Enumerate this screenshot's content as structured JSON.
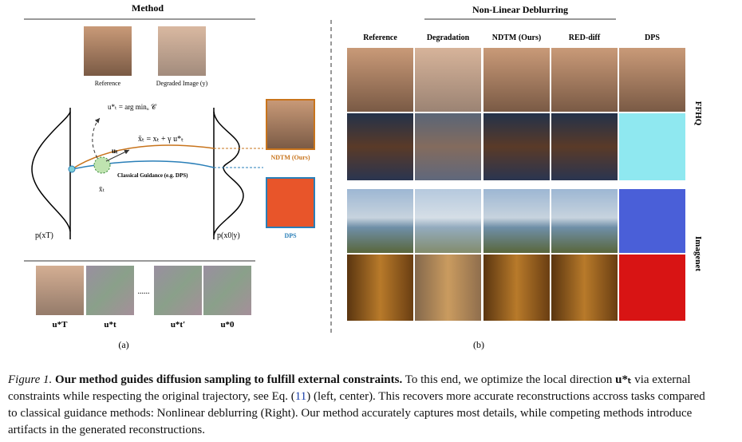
{
  "left": {
    "title": "Method",
    "reference_label": "Reference",
    "degraded_label": "Degraded Image (y)",
    "argmin_eq": "u*ₜ = arg minᵤ 𝒞",
    "update_eq": "x̄ₜ = xₜ + γ u*ₜ",
    "direction_label": "uₜ",
    "guidance_label": "Classical Guidance (e.g. DPS)",
    "point_label": "x̄ₜ",
    "prior_label": "p(xT)",
    "posterior_label": "p(x0|y)",
    "ours_label": "NDTM (Ours)",
    "dps_label": "DPS",
    "dots": "......",
    "u_labels": [
      "u*T",
      "u*t",
      "u*t′",
      "u*0"
    ],
    "panel_label": "(a)"
  },
  "right": {
    "title": "Non-Linear Deblurring",
    "columns": [
      "Reference",
      "Degradation",
      "NDTM (Ours)",
      "RED-diff",
      "DPS"
    ],
    "row_groups": [
      "FFHQ",
      "Imagenet"
    ],
    "panel_label": "(b)"
  },
  "caption": {
    "figure": "Figure 1.",
    "headline": "Our method guides diffusion sampling to fulfill external constraints.",
    "text1": " To this end, we optimize the local direction ",
    "math": "u*ₜ",
    "text2": " via external constraints while respecting the original trajectory, see Eq. (",
    "ref": "11",
    "text3": ") (left, center). This recovers more accurate reconstructions accross tasks compared to classical guidance methods: Nonlinear deblurring (Right). Our method accurately captures most details, while competing methods introduce artifacts in the generated reconstructions."
  }
}
